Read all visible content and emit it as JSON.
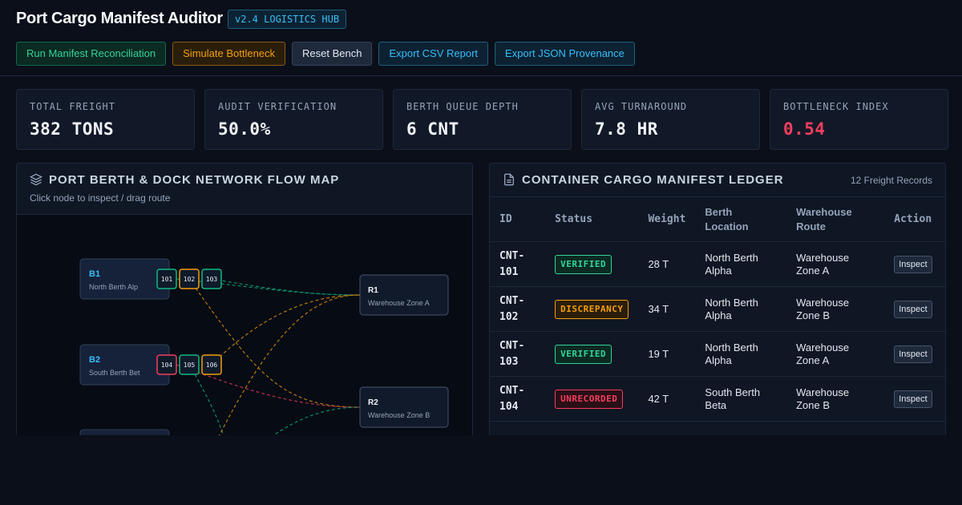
{
  "header": {
    "title": "Port Cargo Manifest Auditor",
    "badge": "v2.4 LOGISTICS HUB",
    "buttons": [
      {
        "label": "Run Manifest Reconciliation",
        "tone": "green"
      },
      {
        "label": "Simulate Bottleneck",
        "tone": "orange"
      },
      {
        "label": "Reset Bench",
        "tone": "gray"
      },
      {
        "label": "Export CSV Report",
        "tone": "blue"
      },
      {
        "label": "Export JSON Provenance",
        "tone": "blue"
      }
    ]
  },
  "kpis": [
    {
      "label": "TOTAL FREIGHT",
      "value": "382 TONS"
    },
    {
      "label": "AUDIT VERIFICATION",
      "value": "50.0%"
    },
    {
      "label": "BERTH QUEUE DEPTH",
      "value": "6 CNT"
    },
    {
      "label": "AVG TURNAROUND",
      "value": "7.8 HR"
    },
    {
      "label": "BOTTLENECK INDEX",
      "value": "0.54",
      "color": "#f43f5e"
    }
  ],
  "map": {
    "title": "PORT BERTH & DOCK NETWORK FLOW MAP",
    "subtitle": "Click node to inspect / drag route",
    "berths": [
      {
        "id": "B1",
        "name": "North Berth Alp",
        "chips": [
          {
            "label": "101",
            "tone": "green"
          },
          {
            "label": "102",
            "tone": "orange"
          },
          {
            "label": "103",
            "tone": "green"
          }
        ]
      },
      {
        "id": "B2",
        "name": "South Berth Bet",
        "chips": [
          {
            "label": "104",
            "tone": "red"
          },
          {
            "label": "105",
            "tone": "green"
          },
          {
            "label": "106",
            "tone": "orange"
          }
        ]
      }
    ],
    "routes": [
      {
        "id": "R1",
        "name": "Warehouse Zone A"
      },
      {
        "id": "R2",
        "name": "Warehouse Zone B"
      }
    ]
  },
  "ledger": {
    "title": "CONTAINER CARGO MANIFEST LEDGER",
    "count": "12 Freight Records",
    "headers": [
      "ID",
      "Status",
      "Weight",
      "Berth Location",
      "Warehouse Route",
      "Action"
    ],
    "rows": [
      [
        "CNT-101",
        "VERIFIED",
        "28 T",
        "North Berth Alpha",
        "Warehouse Zone A",
        "Inspect"
      ],
      [
        "CNT-102",
        "DISCREPANCY",
        "34 T",
        "North Berth Alpha",
        "Warehouse Zone B",
        "Inspect"
      ],
      [
        "CNT-103",
        "VERIFIED",
        "19 T",
        "North Berth Alpha",
        "Warehouse Zone A",
        "Inspect"
      ],
      [
        "CNT-104",
        "UNRECORDED",
        "42 T",
        "South Berth Beta",
        "Warehouse Zone B",
        "Inspect"
      ]
    ],
    "tones": {
      "VERIFIED": "green",
      "DISCREPANCY": "orange",
      "UNRECORDED": "red"
    }
  }
}
